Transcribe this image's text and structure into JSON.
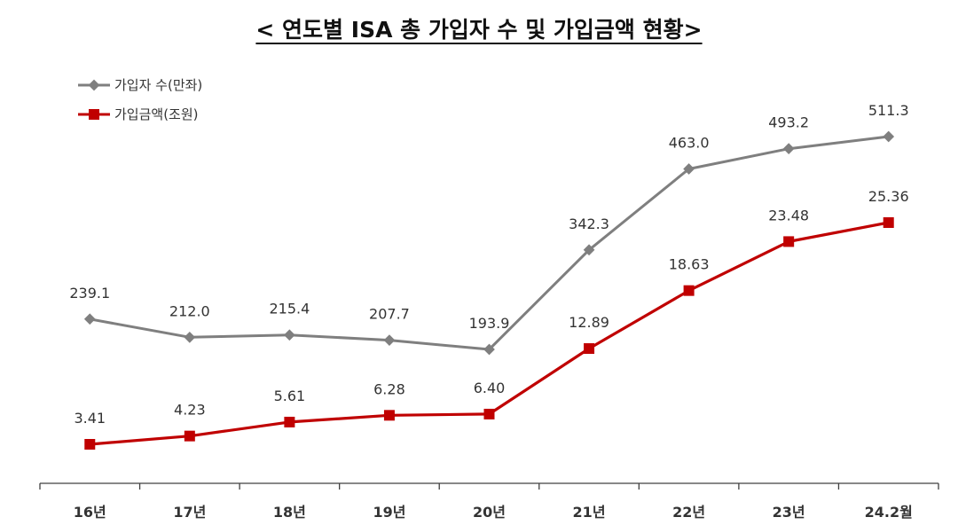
{
  "chart_data": {
    "type": "line",
    "title": "< 연도별 ISA 총 가입자 수 및 가입금액 현황>",
    "categories": [
      "16년",
      "17년",
      "18년",
      "19년",
      "20년",
      "21년",
      "22년",
      "23년",
      "24.2월"
    ],
    "series": [
      {
        "name": "가입자 수(만좌)",
        "color": "#7f7f7f",
        "marker": "diamond",
        "values": [
          239.1,
          212.0,
          215.4,
          207.7,
          193.9,
          342.3,
          463.0,
          493.2,
          511.3
        ],
        "labels": [
          "239.1",
          "212.0",
          "215.4",
          "207.7",
          "193.9",
          "342.3",
          "463.0",
          "493.2",
          "511.3"
        ]
      },
      {
        "name": "가입금액(조원)",
        "color": "#c00000",
        "marker": "square",
        "values": [
          3.41,
          4.23,
          5.61,
          6.28,
          6.4,
          12.89,
          18.63,
          23.48,
          25.36
        ],
        "labels": [
          "3.41",
          "4.23",
          "5.61",
          "6.28",
          "6.40",
          "12.89",
          "18.63",
          "23.48",
          "25.36"
        ]
      }
    ],
    "xlabel": "",
    "ylabel": "",
    "grid": false,
    "legend_position": "top-left"
  }
}
